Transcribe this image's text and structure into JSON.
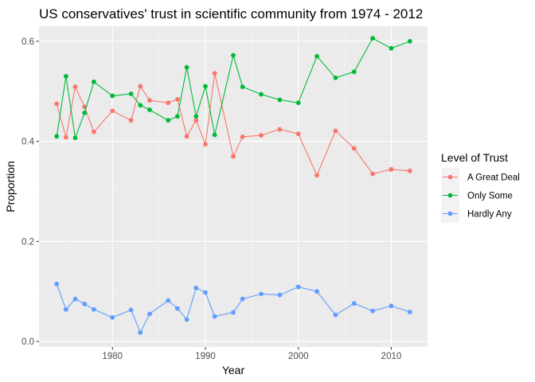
{
  "chart_data": {
    "type": "line",
    "title": "US conservatives' trust in scientific community from 1974 - 2012",
    "xlabel": "Year",
    "ylabel": "Proportion",
    "xlim": [
      1972.1,
      2013.9
    ],
    "ylim": [
      -0.011,
      0.63
    ],
    "x_ticks": [
      1980,
      1990,
      2000,
      2010
    ],
    "y_ticks": [
      0.0,
      0.2,
      0.4,
      0.6
    ],
    "x_tick_labels": [
      "1980",
      "1990",
      "2000",
      "2010"
    ],
    "y_tick_labels": [
      "0.0",
      "0.2",
      "0.4",
      "0.6"
    ],
    "grid": true,
    "legend_title": "Level of Trust",
    "legend_position": "right",
    "x": [
      1974,
      1975,
      1976,
      1977,
      1978,
      1980,
      1982,
      1983,
      1984,
      1986,
      1987,
      1988,
      1989,
      1990,
      1991,
      1993,
      1994,
      1996,
      1998,
      2000,
      2002,
      2004,
      2006,
      2008,
      2010,
      2012
    ],
    "series": [
      {
        "name": "A Great Deal",
        "color": "#F8766D",
        "values": [
          0.475,
          0.408,
          0.509,
          0.469,
          0.419,
          0.461,
          0.442,
          0.51,
          0.482,
          0.477,
          0.484,
          0.41,
          0.442,
          0.394,
          0.536,
          0.37,
          0.409,
          0.412,
          0.424,
          0.415,
          0.332,
          0.421,
          0.386,
          0.335,
          0.344,
          0.341
        ]
      },
      {
        "name": "Only Some",
        "color": "#00BA38",
        "values": [
          0.41,
          0.53,
          0.407,
          0.457,
          0.519,
          0.491,
          0.495,
          0.472,
          0.463,
          0.442,
          0.45,
          0.548,
          0.45,
          0.51,
          0.413,
          0.572,
          0.509,
          0.494,
          0.483,
          0.477,
          0.57,
          0.527,
          0.539,
          0.606,
          0.586,
          0.6
        ]
      },
      {
        "name": "Hardly Any",
        "color": "#619CFF",
        "values": [
          0.115,
          0.064,
          0.085,
          0.075,
          0.064,
          0.048,
          0.063,
          0.018,
          0.055,
          0.082,
          0.066,
          0.044,
          0.107,
          0.098,
          0.05,
          0.058,
          0.085,
          0.095,
          0.093,
          0.109,
          0.1,
          0.053,
          0.076,
          0.061,
          0.071,
          0.059
        ]
      }
    ]
  }
}
